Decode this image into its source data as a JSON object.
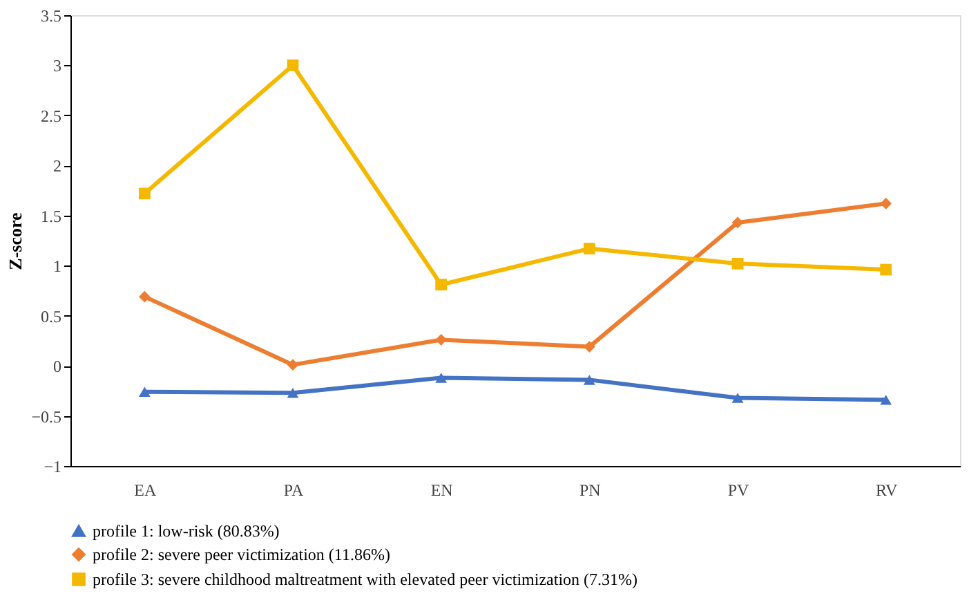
{
  "chart_data": {
    "type": "line",
    "ylabel": "Z-score",
    "categories": [
      "EA",
      "PA",
      "EN",
      "PN",
      "PV",
      "RV"
    ],
    "ylim": [
      -1,
      3.5
    ],
    "yticks": [
      -1,
      -0.5,
      0,
      0.5,
      1,
      1.5,
      2,
      2.5,
      3,
      3.5
    ],
    "grid": false,
    "legend": "bottom",
    "series": [
      {
        "name": "profile 1: low-risk (80.83%)",
        "color": "#4472c4",
        "marker": "triangle",
        "values": [
          -0.26,
          -0.27,
          -0.12,
          -0.14,
          -0.32,
          -0.34
        ]
      },
      {
        "name": "profile 2: severe peer victimization (11.86%)",
        "color": "#ed7d31",
        "marker": "diamond",
        "values": [
          0.69,
          0.01,
          0.26,
          0.19,
          1.43,
          1.62
        ]
      },
      {
        "name": "profile 3: severe childhood maltreatment with elevated peer victimization (7.31%)",
        "color": "#f5b800",
        "marker": "square",
        "values": [
          1.72,
          3.0,
          0.81,
          1.17,
          1.02,
          0.96
        ]
      }
    ]
  }
}
